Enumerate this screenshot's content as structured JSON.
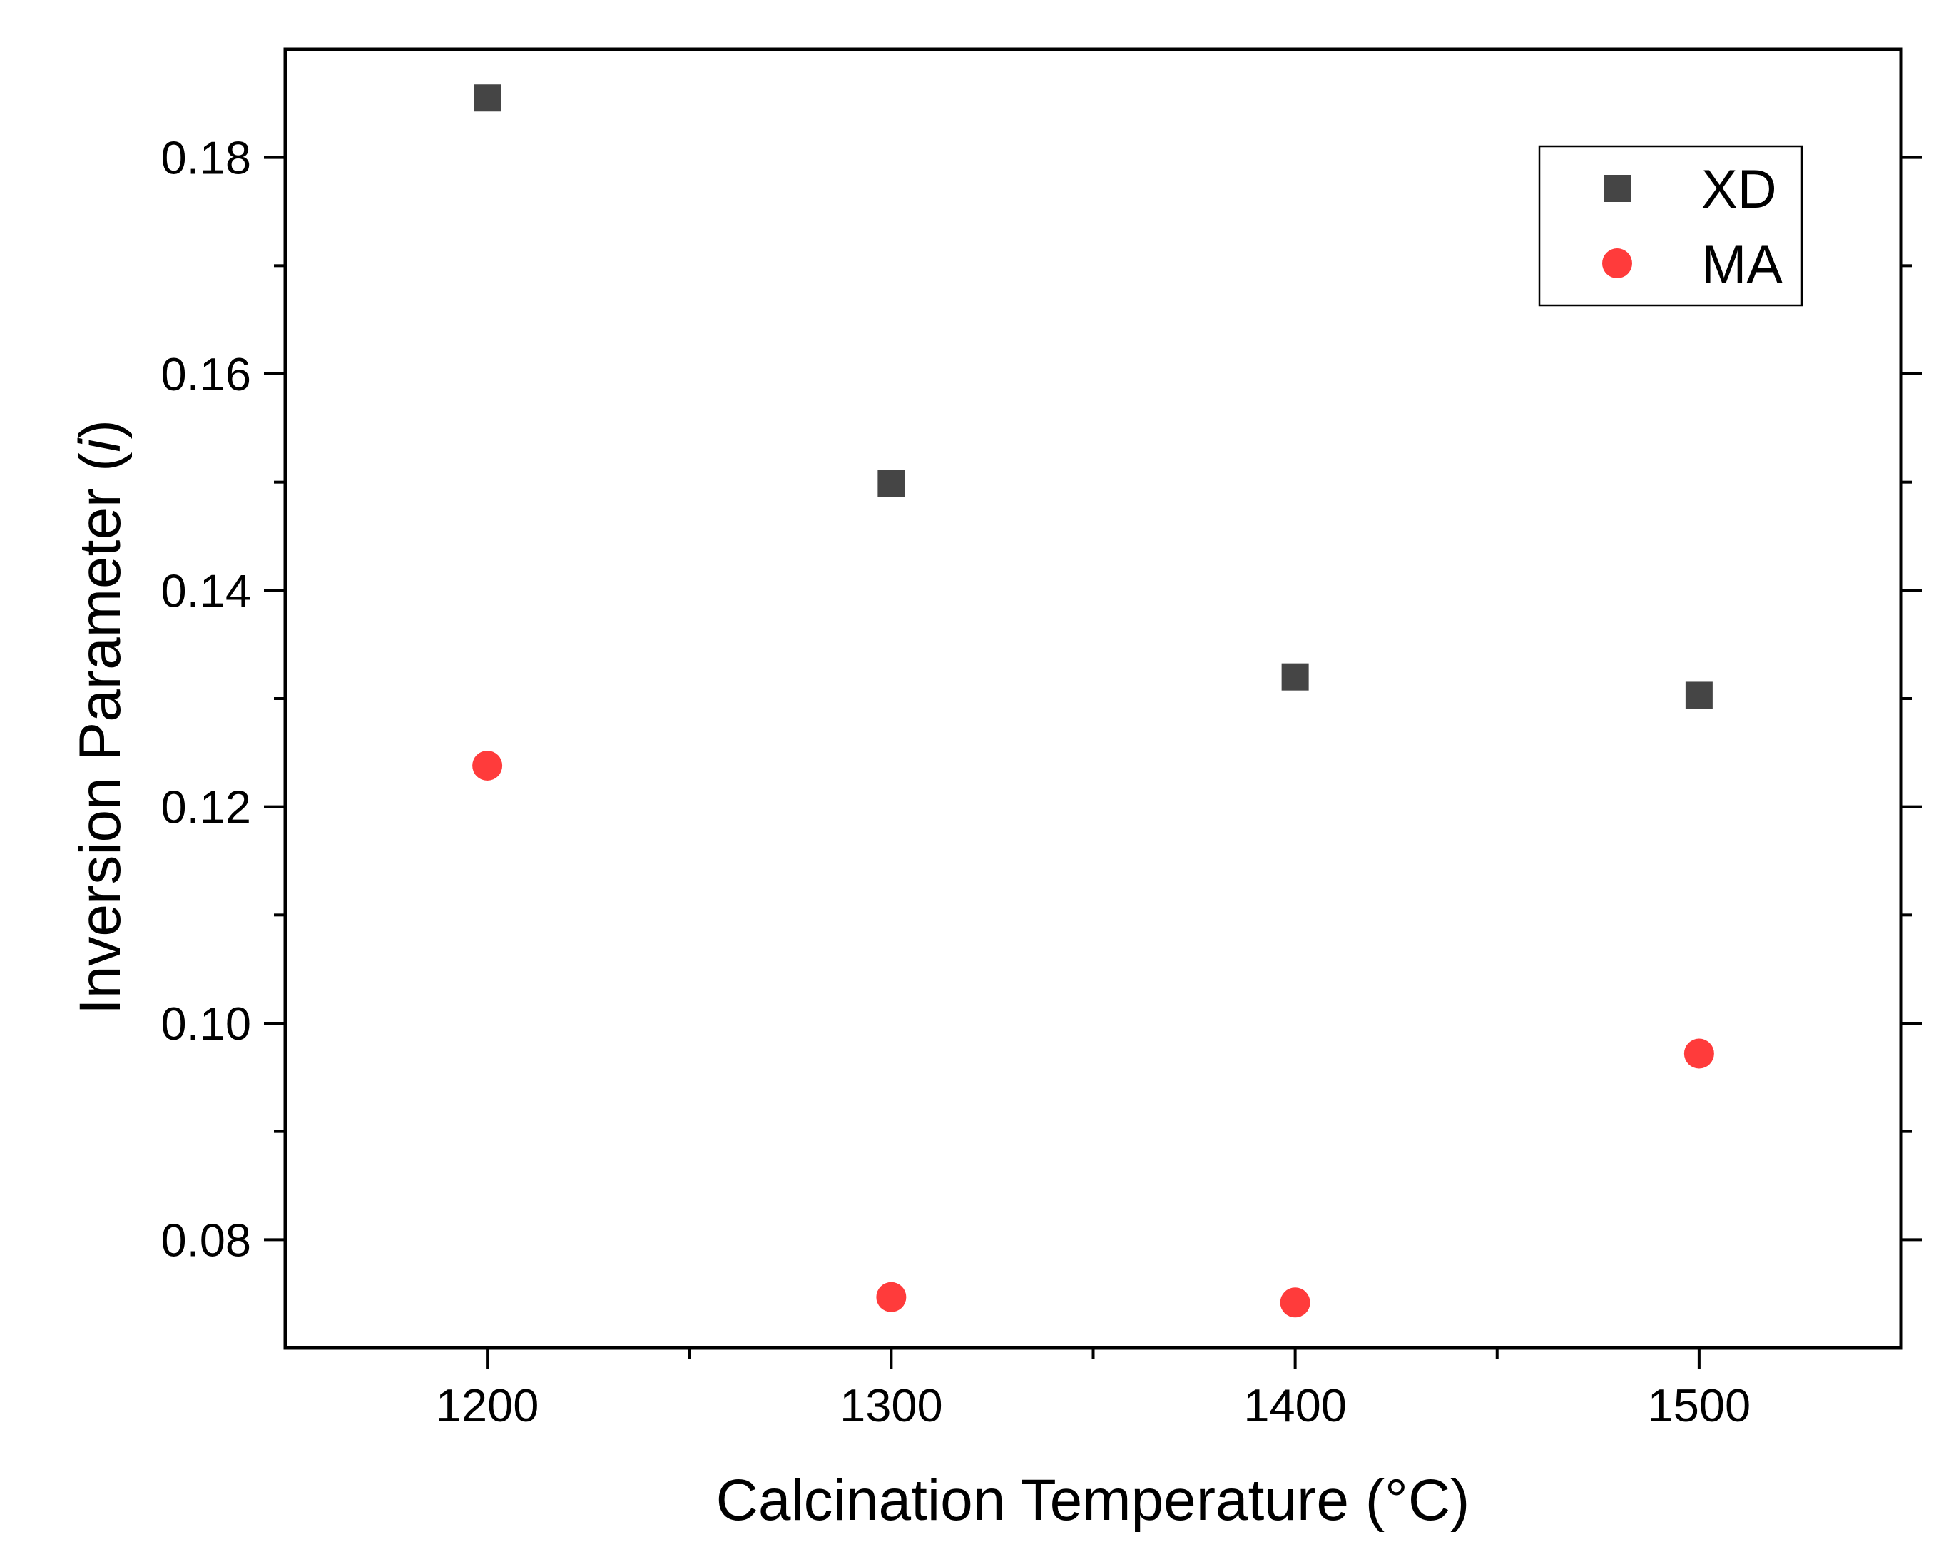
{
  "chart_data": {
    "type": "scatter",
    "title": "",
    "xlabel": "Calcination Temperature (°C)",
    "ylabel_main": "Inversion Parameter (",
    "ylabel_var": "i",
    "ylabel_close": ")",
    "xlim": [
      1150,
      1550
    ],
    "ylim": [
      0.07,
      0.19
    ],
    "x_ticks": [
      1200,
      1300,
      1400,
      1500
    ],
    "x_tick_labels": [
      "1200",
      "1300",
      "1400",
      "1500"
    ],
    "x_minor_ticks": [
      1250,
      1350,
      1450
    ],
    "y_ticks": [
      0.08,
      0.1,
      0.12,
      0.14,
      0.16,
      0.18
    ],
    "y_tick_labels": [
      "0.08",
      "0.10",
      "0.12",
      "0.14",
      "0.16",
      "0.18"
    ],
    "y_minor_ticks": [
      0.09,
      0.11,
      0.13,
      0.15,
      0.17
    ],
    "grid": false,
    "legend_position": "top-right",
    "series": [
      {
        "name": "XD",
        "marker": "square",
        "color": "#454545",
        "x": [
          1200,
          1300,
          1400,
          1500
        ],
        "y": [
          0.1855,
          0.1499,
          0.132,
          0.1303
        ]
      },
      {
        "name": "MA",
        "marker": "circle",
        "color": "#ff3b3b",
        "x": [
          1200,
          1300,
          1400,
          1500
        ],
        "y": [
          0.1238,
          0.0747,
          0.0742,
          0.0972
        ]
      }
    ]
  }
}
